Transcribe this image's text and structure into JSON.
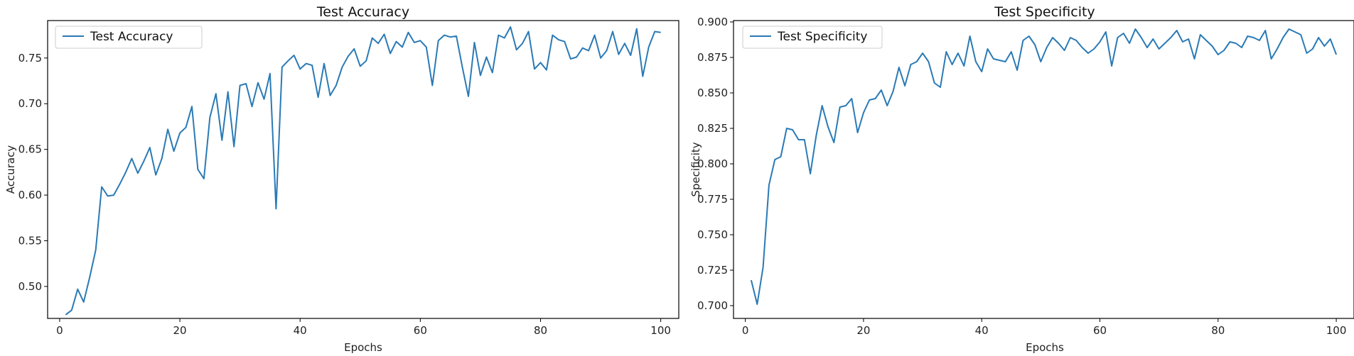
{
  "chart_data": [
    {
      "type": "line",
      "title": "Test  Accuracy",
      "xlabel": "Epochs",
      "ylabel": "Accuracy",
      "xlim": [
        -2,
        103
      ],
      "ylim": [
        0.465,
        0.791
      ],
      "xticks": [
        0,
        20,
        40,
        60,
        80,
        100
      ],
      "yticks": [
        0.5,
        0.55,
        0.6,
        0.65,
        0.7,
        0.75
      ],
      "ytick_labels": [
        "0.50",
        "0.55",
        "0.60",
        "0.65",
        "0.70",
        "0.75"
      ],
      "grid": false,
      "legend": "top-left",
      "color": "#2a7ab5",
      "series": [
        {
          "name": "Test  Accuracy",
          "x": [
            1,
            2,
            3,
            4,
            5,
            6,
            7,
            8,
            9,
            10,
            11,
            12,
            13,
            14,
            15,
            16,
            17,
            18,
            19,
            20,
            21,
            22,
            23,
            24,
            25,
            26,
            27,
            28,
            29,
            30,
            31,
            32,
            33,
            34,
            35,
            36,
            37,
            38,
            39,
            40,
            41,
            42,
            43,
            44,
            45,
            46,
            47,
            48,
            49,
            50,
            51,
            52,
            53,
            54,
            55,
            56,
            57,
            58,
            59,
            60,
            61,
            62,
            63,
            64,
            65,
            66,
            67,
            68,
            69,
            70,
            71,
            72,
            73,
            74,
            75,
            76,
            77,
            78,
            79,
            80,
            81,
            82,
            83,
            84,
            85,
            86,
            87,
            88,
            89,
            90,
            91,
            92,
            93,
            94,
            95,
            96,
            97,
            98,
            99,
            100
          ],
          "values": [
            0.469,
            0.474,
            0.497,
            0.483,
            0.51,
            0.54,
            0.609,
            0.599,
            0.6,
            0.612,
            0.625,
            0.64,
            0.624,
            0.637,
            0.652,
            0.622,
            0.64,
            0.672,
            0.648,
            0.668,
            0.674,
            0.697,
            0.628,
            0.618,
            0.685,
            0.711,
            0.66,
            0.713,
            0.653,
            0.72,
            0.722,
            0.697,
            0.723,
            0.705,
            0.733,
            0.585,
            0.74,
            0.747,
            0.753,
            0.738,
            0.744,
            0.742,
            0.707,
            0.744,
            0.709,
            0.72,
            0.74,
            0.752,
            0.76,
            0.741,
            0.747,
            0.772,
            0.766,
            0.776,
            0.755,
            0.768,
            0.762,
            0.778,
            0.767,
            0.769,
            0.762,
            0.72,
            0.769,
            0.775,
            0.773,
            0.774,
            0.74,
            0.708,
            0.767,
            0.731,
            0.751,
            0.734,
            0.775,
            0.772,
            0.784,
            0.759,
            0.766,
            0.779,
            0.738,
            0.745,
            0.737,
            0.775,
            0.77,
            0.768,
            0.749,
            0.751,
            0.761,
            0.758,
            0.775,
            0.75,
            0.758,
            0.779,
            0.754,
            0.766,
            0.753,
            0.782,
            0.73,
            0.762,
            0.779,
            0.778
          ]
        }
      ]
    },
    {
      "type": "line",
      "title": "Test  Specificity",
      "xlabel": "Epochs",
      "ylabel": "Specificity",
      "xlim": [
        -2,
        103
      ],
      "ylim": [
        0.691,
        0.901
      ],
      "xticks": [
        0,
        20,
        40,
        60,
        80,
        100
      ],
      "yticks": [
        0.7,
        0.725,
        0.75,
        0.775,
        0.8,
        0.825,
        0.85,
        0.875,
        0.9
      ],
      "ytick_labels": [
        "0.700",
        "0.725",
        "0.750",
        "0.775",
        "0.800",
        "0.825",
        "0.850",
        "0.875",
        "0.900"
      ],
      "grid": false,
      "legend": "top-left",
      "color": "#2a7ab5",
      "series": [
        {
          "name": "Test  Specificity",
          "x": [
            1,
            2,
            3,
            4,
            5,
            6,
            7,
            8,
            9,
            10,
            11,
            12,
            13,
            14,
            15,
            16,
            17,
            18,
            19,
            20,
            21,
            22,
            23,
            24,
            25,
            26,
            27,
            28,
            29,
            30,
            31,
            32,
            33,
            34,
            35,
            36,
            37,
            38,
            39,
            40,
            41,
            42,
            43,
            44,
            45,
            46,
            47,
            48,
            49,
            50,
            51,
            52,
            53,
            54,
            55,
            56,
            57,
            58,
            59,
            60,
            61,
            62,
            63,
            64,
            65,
            66,
            67,
            68,
            69,
            70,
            71,
            72,
            73,
            74,
            75,
            76,
            77,
            78,
            79,
            80,
            81,
            82,
            83,
            84,
            85,
            86,
            87,
            88,
            89,
            90,
            91,
            92,
            93,
            94,
            95,
            96,
            97,
            98,
            99,
            100
          ],
          "values": [
            0.718,
            0.701,
            0.727,
            0.785,
            0.803,
            0.805,
            0.825,
            0.824,
            0.817,
            0.817,
            0.793,
            0.82,
            0.841,
            0.826,
            0.815,
            0.84,
            0.841,
            0.846,
            0.822,
            0.836,
            0.845,
            0.846,
            0.852,
            0.841,
            0.851,
            0.868,
            0.855,
            0.87,
            0.872,
            0.878,
            0.872,
            0.857,
            0.854,
            0.879,
            0.87,
            0.878,
            0.869,
            0.89,
            0.872,
            0.865,
            0.881,
            0.874,
            0.873,
            0.872,
            0.879,
            0.866,
            0.887,
            0.89,
            0.884,
            0.872,
            0.882,
            0.889,
            0.885,
            0.88,
            0.889,
            0.887,
            0.882,
            0.878,
            0.881,
            0.886,
            0.893,
            0.869,
            0.889,
            0.892,
            0.885,
            0.895,
            0.889,
            0.882,
            0.888,
            0.881,
            0.885,
            0.889,
            0.894,
            0.886,
            0.888,
            0.874,
            0.891,
            0.887,
            0.883,
            0.877,
            0.88,
            0.886,
            0.885,
            0.882,
            0.89,
            0.889,
            0.887,
            0.894,
            0.874,
            0.881,
            0.889,
            0.895,
            0.893,
            0.891,
            0.878,
            0.881,
            0.889,
            0.883,
            0.888,
            0.877
          ]
        }
      ]
    }
  ]
}
